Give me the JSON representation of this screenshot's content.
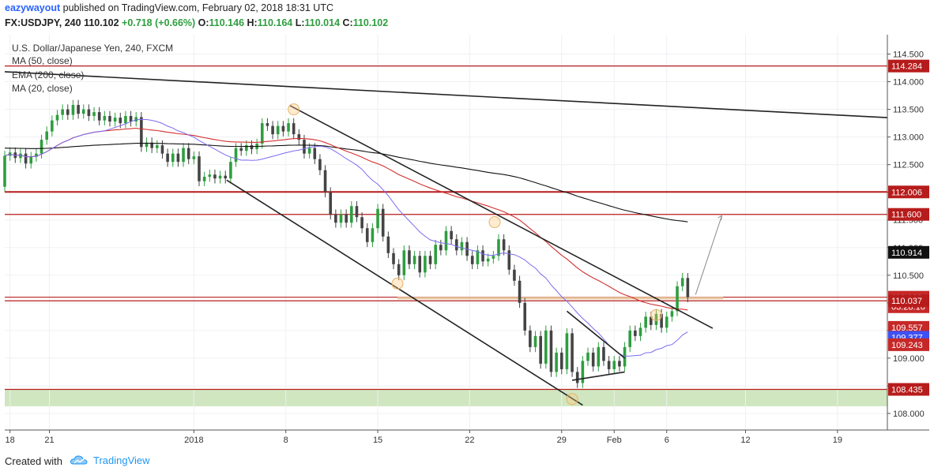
{
  "header": {
    "author": "eazywayout",
    "published_text": "published on TradingView.com, February 02, 2018 18:31 UTC",
    "symbol": "FX:USDJPY, 240",
    "last": "110.102",
    "change": "+0.718 (+0.66%)",
    "o_label": "O:",
    "o_val": "110.146",
    "h_label": "H:",
    "h_val": "110.164",
    "l_label": "L:",
    "l_val": "110.014",
    "c_label": "C:",
    "c_val": "110.102"
  },
  "footer": {
    "created": "Created with",
    "brand": "TradingView"
  },
  "colors": {
    "ma50": "#d32f2f",
    "ema200": "#111111",
    "ma20": "#7b6cf0",
    "up": "#2e9e3f",
    "down": "#444444",
    "zone": "#cfe6c0"
  },
  "chart_data": {
    "type": "candlestick",
    "title": "U.S. Dollar/Japanese Yen, 240, FXCM",
    "legend": [
      "MA (50, close)",
      "EMA (200, close)",
      "MA (20, close)"
    ],
    "y_ticks": [
      "114.500",
      "114.000",
      "113.500",
      "113.000",
      "112.500",
      "112.000",
      "111.500",
      "111.000",
      "110.500",
      "110.000",
      "109.500",
      "109.000",
      "108.500",
      "108.000"
    ],
    "ylim": [
      107.7,
      114.85
    ],
    "x_ticks": [
      "18",
      "21",
      "2018",
      "8",
      "15",
      "22",
      "29",
      "Feb",
      "6",
      "12",
      "19"
    ],
    "x_tick_days": [
      -14,
      -11,
      0,
      7,
      14,
      21,
      28,
      32,
      36,
      42,
      49
    ],
    "xlim": [
      -14.4,
      52.8
    ],
    "horizontal_levels": [
      114.284,
      112.006,
      111.6,
      110.102,
      110.037,
      108.435
    ],
    "price_labels": [
      {
        "text": "114.284",
        "value": 114.284,
        "color": "#b71c1c"
      },
      {
        "text": "112.006",
        "value": 112.006,
        "color": "#b71c1c"
      },
      {
        "text": "111.600",
        "value": 111.6,
        "color": "#b71c1c"
      },
      {
        "text": "110.914",
        "value": 110.914,
        "color": "#111111"
      },
      {
        "text": "110.102",
        "value": 110.102,
        "color": "#c62828"
      },
      {
        "text": "03:28:10",
        "value": 109.93,
        "color": "#c62828"
      },
      {
        "text": "110.037",
        "value": 110.037,
        "color": "#b71c1c"
      },
      {
        "text": "109.557",
        "value": 109.557,
        "color": "#c62828"
      },
      {
        "text": "109.377",
        "value": 109.377,
        "color": "#3f51f5"
      },
      {
        "text": "109.243",
        "value": 109.243,
        "color": "#c62828"
      },
      {
        "text": "108.435",
        "value": 108.435,
        "color": "#b71c1c"
      }
    ],
    "support_zone": [
      108.13,
      108.43
    ],
    "candles": [
      [
        -14.4,
        112.1,
        112.66
      ],
      [
        -14.0,
        112.66,
        112.72
      ],
      [
        -13.6,
        112.72,
        112.62
      ],
      [
        -13.2,
        112.62,
        112.7
      ],
      [
        -12.8,
        112.7,
        112.52
      ],
      [
        -12.4,
        112.52,
        112.64
      ],
      [
        -12.0,
        112.64,
        112.7
      ],
      [
        -11.6,
        112.7,
        112.95
      ],
      [
        -11.2,
        112.95,
        113.1
      ],
      [
        -10.8,
        113.1,
        113.3
      ],
      [
        -10.4,
        113.3,
        113.4
      ],
      [
        -10.0,
        113.4,
        113.5
      ],
      [
        -9.6,
        113.5,
        113.4
      ],
      [
        -9.2,
        113.4,
        113.58
      ],
      [
        -8.8,
        113.58,
        113.42
      ],
      [
        -8.4,
        113.42,
        113.5
      ],
      [
        -8.0,
        113.5,
        113.38
      ],
      [
        -7.6,
        113.38,
        113.45
      ],
      [
        -7.2,
        113.45,
        113.3
      ],
      [
        -6.8,
        113.3,
        113.38
      ],
      [
        -6.4,
        113.38,
        113.28
      ],
      [
        -6.0,
        113.28,
        113.35
      ],
      [
        -5.6,
        113.35,
        113.25
      ],
      [
        -5.2,
        113.25,
        113.38
      ],
      [
        -4.8,
        113.38,
        113.28
      ],
      [
        -4.4,
        113.28,
        113.36
      ],
      [
        -4.0,
        113.36,
        112.82
      ],
      [
        -3.6,
        112.82,
        112.9
      ],
      [
        -3.2,
        112.9,
        112.8
      ],
      [
        -2.8,
        112.8,
        112.85
      ],
      [
        -2.4,
        112.85,
        112.7
      ],
      [
        -2.0,
        112.7,
        112.55
      ],
      [
        -1.6,
        112.55,
        112.7
      ],
      [
        -1.2,
        112.7,
        112.55
      ],
      [
        -0.8,
        112.55,
        112.8
      ],
      [
        -0.4,
        112.8,
        112.6
      ],
      [
        0.0,
        112.6,
        112.65
      ],
      [
        0.4,
        112.65,
        112.2
      ],
      [
        0.8,
        112.2,
        112.28
      ],
      [
        1.2,
        112.28,
        112.32
      ],
      [
        1.6,
        112.32,
        112.25
      ],
      [
        2.0,
        112.25,
        112.3
      ],
      [
        2.4,
        112.3,
        112.25
      ],
      [
        2.8,
        112.25,
        112.55
      ],
      [
        3.2,
        112.55,
        112.8
      ],
      [
        3.6,
        112.8,
        112.75
      ],
      [
        4.0,
        112.75,
        112.85
      ],
      [
        4.4,
        112.85,
        112.78
      ],
      [
        4.8,
        112.78,
        112.88
      ],
      [
        5.2,
        112.88,
        113.25
      ],
      [
        5.6,
        113.25,
        113.2
      ],
      [
        6.0,
        113.2,
        113.05
      ],
      [
        6.4,
        113.05,
        113.2
      ],
      [
        6.8,
        113.2,
        113.1
      ],
      [
        7.2,
        113.1,
        113.25
      ],
      [
        7.6,
        113.25,
        113.05
      ],
      [
        8.0,
        113.05,
        112.95
      ],
      [
        8.4,
        112.95,
        112.7
      ],
      [
        8.8,
        112.7,
        112.8
      ],
      [
        9.2,
        112.8,
        112.6
      ],
      [
        9.6,
        112.6,
        112.4
      ],
      [
        10.0,
        112.4,
        112.0
      ],
      [
        10.4,
        112.0,
        111.6
      ],
      [
        10.8,
        111.6,
        111.45
      ],
      [
        11.2,
        111.45,
        111.6
      ],
      [
        11.6,
        111.6,
        111.45
      ],
      [
        12.0,
        111.45,
        111.75
      ],
      [
        12.4,
        111.75,
        111.55
      ],
      [
        12.8,
        111.55,
        111.35
      ],
      [
        13.2,
        111.35,
        111.1
      ],
      [
        13.6,
        111.1,
        111.35
      ],
      [
        14.0,
        111.35,
        111.7
      ],
      [
        14.4,
        111.7,
        111.2
      ],
      [
        14.8,
        111.2,
        110.9
      ],
      [
        15.2,
        110.9,
        110.7
      ],
      [
        15.6,
        110.7,
        110.5
      ],
      [
        16.0,
        110.5,
        110.95
      ],
      [
        16.4,
        110.95,
        110.7
      ],
      [
        16.8,
        110.7,
        110.85
      ],
      [
        17.2,
        110.85,
        110.55
      ],
      [
        17.6,
        110.55,
        110.85
      ],
      [
        18.0,
        110.85,
        110.7
      ],
      [
        18.4,
        110.7,
        111.05
      ],
      [
        18.8,
        111.05,
        110.95
      ],
      [
        19.2,
        110.95,
        111.3
      ],
      [
        19.6,
        111.3,
        111.15
      ],
      [
        20.0,
        111.15,
        110.95
      ],
      [
        20.4,
        110.95,
        111.1
      ],
      [
        20.8,
        111.1,
        110.85
      ],
      [
        21.2,
        110.85,
        110.7
      ],
      [
        21.6,
        110.7,
        110.95
      ],
      [
        22.0,
        110.95,
        110.75
      ],
      [
        22.4,
        110.75,
        110.8
      ],
      [
        22.8,
        110.8,
        110.85
      ],
      [
        23.2,
        110.85,
        111.15
      ],
      [
        23.6,
        111.15,
        110.95
      ],
      [
        24.0,
        110.95,
        110.6
      ],
      [
        24.4,
        110.6,
        110.4
      ],
      [
        24.8,
        110.4,
        110.0
      ],
      [
        25.2,
        110.0,
        109.5
      ],
      [
        25.6,
        109.5,
        109.2
      ],
      [
        26.0,
        109.2,
        109.4
      ],
      [
        26.4,
        109.4,
        108.9
      ],
      [
        26.8,
        108.9,
        109.5
      ],
      [
        27.2,
        109.5,
        108.75
      ],
      [
        27.6,
        108.75,
        109.1
      ],
      [
        28.0,
        109.1,
        108.8
      ],
      [
        28.4,
        108.8,
        109.45
      ],
      [
        28.8,
        109.45,
        108.75
      ],
      [
        29.2,
        108.75,
        108.55
      ],
      [
        29.6,
        108.55,
        108.95
      ],
      [
        30.0,
        108.95,
        109.1
      ],
      [
        30.4,
        109.1,
        108.85
      ],
      [
        30.8,
        108.85,
        109.2
      ],
      [
        31.2,
        109.2,
        108.95
      ],
      [
        31.6,
        108.95,
        108.8
      ],
      [
        32.0,
        108.8,
        108.95
      ],
      [
        32.4,
        108.95,
        108.85
      ],
      [
        32.8,
        108.85,
        109.2
      ],
      [
        33.2,
        109.2,
        109.5
      ],
      [
        33.6,
        109.5,
        109.4
      ],
      [
        34.0,
        109.4,
        109.55
      ],
      [
        34.4,
        109.55,
        109.75
      ],
      [
        34.8,
        109.75,
        109.6
      ],
      [
        35.2,
        109.6,
        109.8
      ],
      [
        35.6,
        109.8,
        109.55
      ],
      [
        36.0,
        109.55,
        109.75
      ],
      [
        36.4,
        109.75,
        109.85
      ],
      [
        36.8,
        109.85,
        110.3
      ],
      [
        37.2,
        110.3,
        110.45
      ],
      [
        37.6,
        110.45,
        110.102
      ]
    ]
  }
}
